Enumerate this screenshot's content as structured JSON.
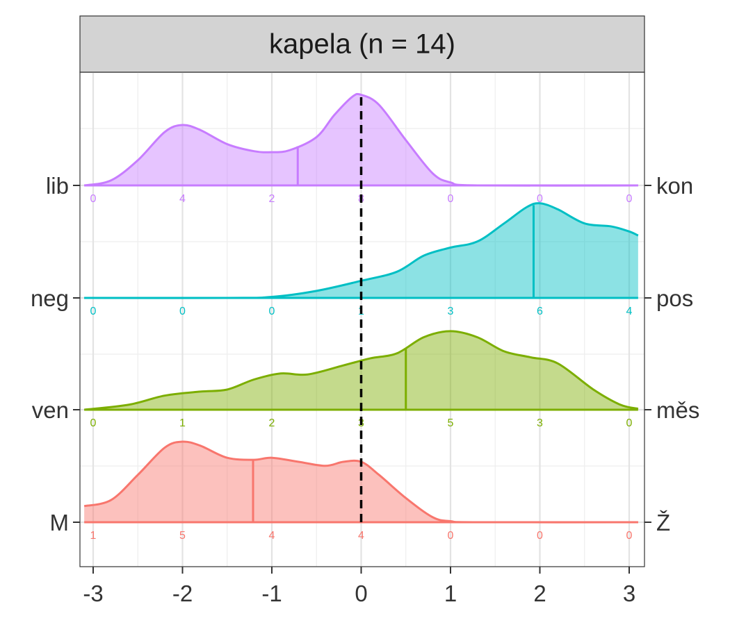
{
  "chart_data": {
    "type": "ridgeline",
    "title": "kapela (n = 14)",
    "xlim": [
      -3.1,
      3.1
    ],
    "x_ticks": [
      -3,
      -2,
      -1,
      0,
      1,
      2,
      3
    ],
    "x_tick_labels": [
      "-3",
      "-2",
      "-1",
      "0",
      "1",
      "2",
      "3"
    ],
    "reference_line_x": 0,
    "grid": true,
    "series": [
      {
        "left_label": "lib",
        "right_label": "kon",
        "color": "#C77CFF",
        "counts_x": [
          -3,
          -2,
          -1,
          0,
          1,
          2,
          3
        ],
        "counts": [
          "0",
          "4",
          "2",
          "8",
          "0",
          "0",
          "0"
        ],
        "mean": -0.71,
        "density": [
          [
            -3.1,
            0.0
          ],
          [
            -2.8,
            0.05
          ],
          [
            -2.5,
            0.25
          ],
          [
            -2.2,
            0.53
          ],
          [
            -2.0,
            0.6
          ],
          [
            -1.8,
            0.55
          ],
          [
            -1.5,
            0.41
          ],
          [
            -1.2,
            0.34
          ],
          [
            -1.0,
            0.33
          ],
          [
            -0.8,
            0.35
          ],
          [
            -0.5,
            0.48
          ],
          [
            -0.3,
            0.7
          ],
          [
            -0.1,
            0.88
          ],
          [
            0.0,
            0.9
          ],
          [
            0.2,
            0.8
          ],
          [
            0.5,
            0.45
          ],
          [
            0.8,
            0.12
          ],
          [
            1.0,
            0.03
          ],
          [
            1.3,
            0.0
          ],
          [
            3.1,
            0.0
          ]
        ]
      },
      {
        "left_label": "neg",
        "right_label": "pos",
        "color": "#00BFC4",
        "counts_x": [
          -3,
          -2,
          -1,
          0,
          1,
          2,
          3
        ],
        "counts": [
          "0",
          "0",
          "0",
          "1",
          "3",
          "6",
          "4"
        ],
        "mean": 1.93,
        "density": [
          [
            -3.1,
            0.0
          ],
          [
            -1.5,
            0.0
          ],
          [
            -1.0,
            0.01
          ],
          [
            -0.5,
            0.07
          ],
          [
            0.0,
            0.17
          ],
          [
            0.4,
            0.26
          ],
          [
            0.7,
            0.42
          ],
          [
            1.0,
            0.5
          ],
          [
            1.3,
            0.56
          ],
          [
            1.6,
            0.74
          ],
          [
            1.85,
            0.9
          ],
          [
            2.0,
            0.94
          ],
          [
            2.2,
            0.88
          ],
          [
            2.5,
            0.74
          ],
          [
            2.8,
            0.71
          ],
          [
            3.0,
            0.66
          ],
          [
            3.1,
            0.62
          ]
        ]
      },
      {
        "left_label": "ven",
        "right_label": "měs",
        "color": "#7CAE00",
        "counts_x": [
          -3,
          -2,
          -1,
          0,
          1,
          2,
          3
        ],
        "counts": [
          "0",
          "1",
          "2",
          "3",
          "5",
          "3",
          "0"
        ],
        "mean": 0.5,
        "density": [
          [
            -3.1,
            0.0
          ],
          [
            -2.6,
            0.05
          ],
          [
            -2.2,
            0.14
          ],
          [
            -1.8,
            0.18
          ],
          [
            -1.5,
            0.2
          ],
          [
            -1.2,
            0.3
          ],
          [
            -0.9,
            0.36
          ],
          [
            -0.6,
            0.35
          ],
          [
            -0.2,
            0.44
          ],
          [
            0.1,
            0.51
          ],
          [
            0.4,
            0.56
          ],
          [
            0.7,
            0.72
          ],
          [
            1.0,
            0.78
          ],
          [
            1.3,
            0.72
          ],
          [
            1.6,
            0.58
          ],
          [
            1.9,
            0.52
          ],
          [
            2.2,
            0.46
          ],
          [
            2.6,
            0.2
          ],
          [
            2.9,
            0.05
          ],
          [
            3.1,
            0.01
          ]
        ]
      },
      {
        "left_label": "M",
        "right_label": "Ž",
        "color": "#F8766D",
        "counts_x": [
          -3,
          -2,
          -1,
          0,
          1,
          2,
          3
        ],
        "counts": [
          "1",
          "5",
          "4",
          "4",
          "0",
          "0",
          "0"
        ],
        "mean": -1.21,
        "density": [
          [
            -3.1,
            0.16
          ],
          [
            -2.8,
            0.22
          ],
          [
            -2.5,
            0.47
          ],
          [
            -2.2,
            0.74
          ],
          [
            -2.0,
            0.8
          ],
          [
            -1.8,
            0.76
          ],
          [
            -1.5,
            0.64
          ],
          [
            -1.2,
            0.62
          ],
          [
            -1.0,
            0.64
          ],
          [
            -0.7,
            0.6
          ],
          [
            -0.4,
            0.56
          ],
          [
            -0.2,
            0.6
          ],
          [
            0.0,
            0.6
          ],
          [
            0.2,
            0.47
          ],
          [
            0.5,
            0.24
          ],
          [
            0.8,
            0.05
          ],
          [
            1.0,
            0.01
          ],
          [
            1.3,
            0.0
          ],
          [
            3.1,
            0.0
          ]
        ]
      }
    ]
  }
}
